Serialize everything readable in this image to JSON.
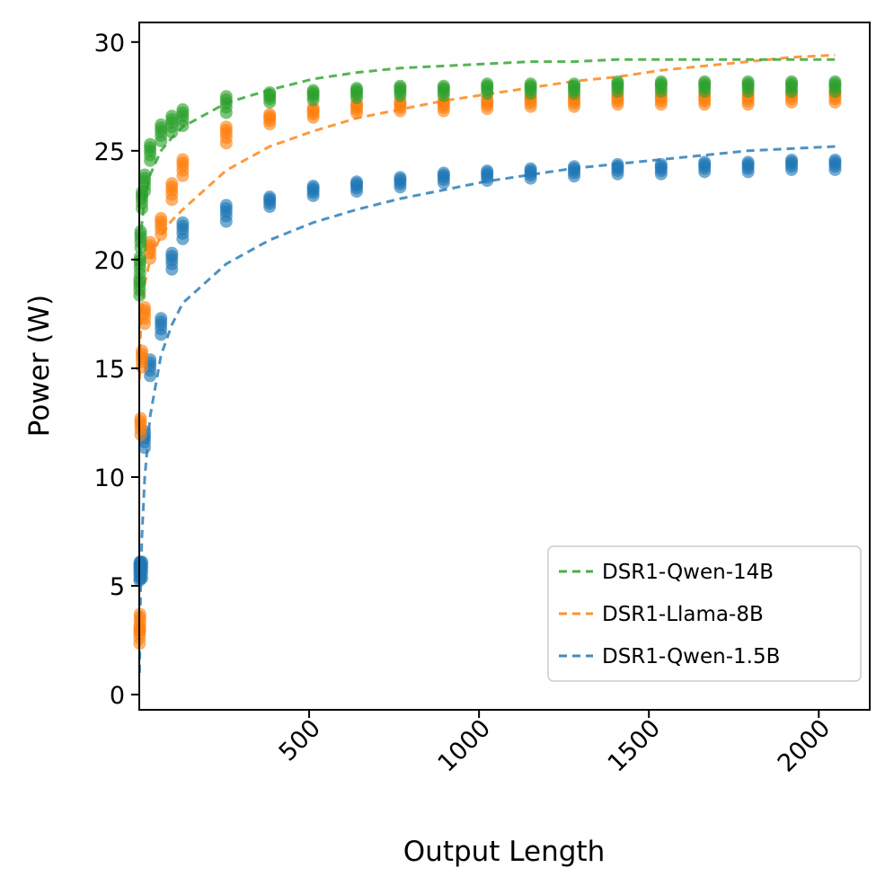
{
  "chart_data": {
    "type": "scatter",
    "title": "",
    "xlabel": "Output Length",
    "ylabel": "Power (W)",
    "xlim": [
      0,
      2150
    ],
    "ylim": [
      -0.7,
      30.9
    ],
    "xticks": [
      500,
      1000,
      1500,
      2000
    ],
    "xtick_labels": [
      "500",
      "1000",
      "1500",
      "2000"
    ],
    "yticks": [
      0,
      5,
      10,
      15,
      20,
      25,
      30
    ],
    "ytick_labels": [
      "0",
      "5",
      "10",
      "15",
      "20",
      "25",
      "30"
    ],
    "grid": false,
    "legend_position": "lower-right",
    "x": [
      1,
      2,
      4,
      8,
      16,
      32,
      64,
      96,
      128,
      256,
      384,
      512,
      640,
      768,
      896,
      1024,
      1152,
      1280,
      1408,
      1536,
      1664,
      1792,
      1920,
      2048
    ],
    "series": [
      {
        "name": "DSR1-Qwen-14B",
        "color": "#2ca02c",
        "marker_values": [
          18.8,
          19.8,
          21.0,
          22.8,
          23.6,
          25.0,
          25.9,
          26.3,
          26.6,
          27.2,
          27.5,
          27.6,
          27.7,
          27.8,
          27.8,
          27.9,
          27.9,
          27.9,
          28.0,
          28.0,
          28.0,
          28.0,
          28.0,
          28.0
        ],
        "fit": [
          18.3,
          19.5,
          20.6,
          21.7,
          22.8,
          23.9,
          25.0,
          25.6,
          26.1,
          27.2,
          27.8,
          28.3,
          28.6,
          28.8,
          28.9,
          29.0,
          29.1,
          29.1,
          29.2,
          29.2,
          29.2,
          29.2,
          29.2,
          29.2
        ]
      },
      {
        "name": "DSR1-Llama-8B",
        "color": "#ff7f0e",
        "marker_values": [
          2.8,
          3.4,
          12.4,
          15.5,
          17.5,
          20.5,
          21.6,
          23.2,
          24.3,
          25.8,
          26.5,
          26.8,
          27.0,
          27.1,
          27.1,
          27.2,
          27.3,
          27.3,
          27.4,
          27.4,
          27.4,
          27.4,
          27.5,
          27.5
        ],
        "fit": [
          14.5,
          15.6,
          16.7,
          17.8,
          18.9,
          20.0,
          21.1,
          21.8,
          22.3,
          24.1,
          25.2,
          25.9,
          26.5,
          26.9,
          27.3,
          27.6,
          27.9,
          28.2,
          28.4,
          28.7,
          28.9,
          29.1,
          29.3,
          29.4
        ]
      },
      {
        "name": "DSR1-Qwen-1.5B",
        "color": "#1f77b4",
        "marker_values": [
          5.7,
          5.8,
          5.8,
          5.8,
          11.8,
          15.1,
          17.0,
          20.0,
          21.4,
          22.2,
          22.7,
          23.2,
          23.4,
          23.6,
          23.8,
          23.9,
          24.0,
          24.1,
          24.2,
          24.2,
          24.3,
          24.3,
          24.4,
          24.4
        ],
        "fit": [
          1.0,
          2.6,
          4.8,
          7.3,
          10.0,
          12.8,
          15.6,
          17.0,
          18.0,
          19.8,
          20.9,
          21.7,
          22.3,
          22.8,
          23.2,
          23.6,
          23.9,
          24.2,
          24.4,
          24.6,
          24.8,
          25.0,
          25.1,
          25.2
        ]
      }
    ],
    "legend": [
      "DSR1-Qwen-14B",
      "DSR1-Llama-8B",
      "DSR1-Qwen-1.5B"
    ]
  }
}
